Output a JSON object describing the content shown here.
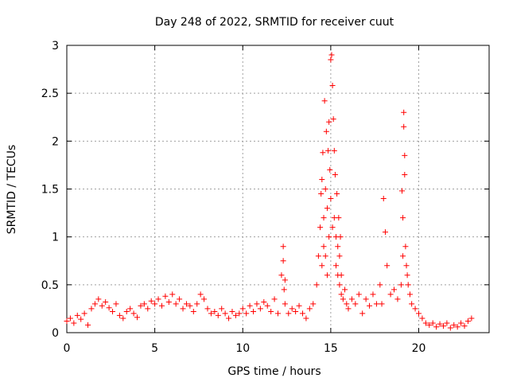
{
  "chart_data": {
    "type": "scatter",
    "title": "Day 248 of 2022, SRMTID for receiver cuut",
    "xlabel": "GPS time / hours",
    "ylabel": "SRMTID / TECUs",
    "xlim": [
      0,
      24
    ],
    "ylim": [
      0,
      3
    ],
    "xticks": [
      0,
      5,
      10,
      15,
      20
    ],
    "xtick_labels": [
      "0",
      "5",
      "10",
      "15",
      "20"
    ],
    "yticks": [
      0,
      0.5,
      1,
      1.5,
      2,
      2.5,
      3
    ],
    "ytick_labels": [
      "0",
      "0.5",
      "1",
      "1.5",
      "2",
      "2.5",
      "3"
    ],
    "grid": true,
    "marker": "+",
    "color": "#ff0000",
    "series": [
      {
        "name": "SRMTID",
        "x": [
          0.0,
          0.2,
          0.4,
          0.6,
          0.8,
          1.0,
          1.2,
          1.4,
          1.6,
          1.8,
          2.0,
          2.2,
          2.4,
          2.6,
          2.8,
          3.0,
          3.2,
          3.4,
          3.6,
          3.8,
          4.0,
          4.2,
          4.4,
          4.6,
          4.8,
          5.0,
          5.2,
          5.4,
          5.6,
          5.8,
          6.0,
          6.2,
          6.4,
          6.6,
          6.8,
          7.0,
          7.2,
          7.4,
          7.6,
          7.8,
          8.0,
          8.2,
          8.4,
          8.6,
          8.8,
          9.0,
          9.2,
          9.4,
          9.6,
          9.8,
          10.0,
          10.2,
          10.4,
          10.6,
          10.8,
          11.0,
          11.2,
          11.4,
          11.6,
          11.8,
          12.0,
          12.2,
          12.3,
          12.3,
          12.35,
          12.4,
          12.4,
          12.6,
          12.8,
          13.0,
          13.2,
          13.4,
          13.6,
          13.8,
          14.0,
          14.2,
          14.3,
          14.4,
          14.45,
          14.5,
          14.5,
          14.55,
          14.6,
          14.6,
          14.65,
          14.7,
          14.7,
          14.75,
          14.8,
          14.8,
          14.85,
          14.9,
          14.9,
          14.95,
          15.0,
          15.0,
          15.05,
          15.1,
          15.1,
          15.15,
          15.2,
          15.2,
          15.25,
          15.3,
          15.3,
          15.35,
          15.4,
          15.4,
          15.45,
          15.5,
          15.5,
          15.55,
          15.6,
          15.6,
          15.7,
          15.8,
          15.9,
          16.0,
          16.2,
          16.4,
          16.6,
          16.8,
          17.0,
          17.2,
          17.4,
          17.6,
          17.8,
          17.9,
          18.0,
          18.1,
          18.2,
          18.4,
          18.6,
          18.8,
          19.0,
          19.05,
          19.1,
          19.1,
          19.15,
          19.15,
          19.2,
          19.2,
          19.25,
          19.3,
          19.35,
          19.4,
          19.5,
          19.6,
          19.8,
          20.0,
          20.2,
          20.4,
          20.6,
          20.8,
          21.0,
          21.2,
          21.4,
          21.6,
          21.8,
          22.0,
          22.2,
          22.4,
          22.6,
          22.8,
          23.0
        ],
        "y": [
          0.12,
          0.15,
          0.1,
          0.18,
          0.14,
          0.2,
          0.08,
          0.25,
          0.3,
          0.35,
          0.28,
          0.32,
          0.26,
          0.22,
          0.3,
          0.18,
          0.15,
          0.22,
          0.25,
          0.2,
          0.16,
          0.28,
          0.3,
          0.25,
          0.33,
          0.3,
          0.35,
          0.28,
          0.38,
          0.32,
          0.4,
          0.3,
          0.35,
          0.25,
          0.3,
          0.28,
          0.22,
          0.3,
          0.4,
          0.35,
          0.25,
          0.2,
          0.22,
          0.18,
          0.25,
          0.2,
          0.15,
          0.22,
          0.18,
          0.2,
          0.25,
          0.2,
          0.28,
          0.22,
          0.3,
          0.25,
          0.32,
          0.28,
          0.22,
          0.35,
          0.2,
          0.6,
          0.9,
          0.75,
          0.45,
          0.3,
          0.55,
          0.2,
          0.25,
          0.22,
          0.28,
          0.2,
          0.15,
          0.25,
          0.3,
          0.5,
          0.8,
          1.1,
          1.45,
          1.6,
          0.7,
          1.88,
          1.2,
          0.9,
          2.42,
          1.5,
          0.8,
          2.1,
          1.3,
          0.6,
          1.9,
          2.2,
          1.0,
          1.7,
          2.85,
          1.4,
          2.9,
          2.58,
          1.1,
          2.23,
          1.9,
          1.2,
          1.65,
          1.0,
          0.7,
          1.45,
          0.9,
          0.6,
          1.2,
          0.8,
          0.5,
          1.0,
          0.6,
          0.4,
          0.35,
          0.45,
          0.3,
          0.25,
          0.35,
          0.3,
          0.4,
          0.2,
          0.35,
          0.28,
          0.4,
          0.3,
          0.5,
          0.3,
          1.4,
          1.05,
          0.7,
          0.4,
          0.45,
          0.35,
          0.5,
          1.48,
          1.2,
          0.8,
          2.3,
          2.15,
          1.85,
          1.65,
          0.9,
          0.7,
          0.6,
          0.5,
          0.4,
          0.3,
          0.25,
          0.2,
          0.15,
          0.1,
          0.08,
          0.1,
          0.06,
          0.09,
          0.07,
          0.1,
          0.05,
          0.08,
          0.06,
          0.1,
          0.07,
          0.12,
          0.15
        ]
      }
    ]
  }
}
